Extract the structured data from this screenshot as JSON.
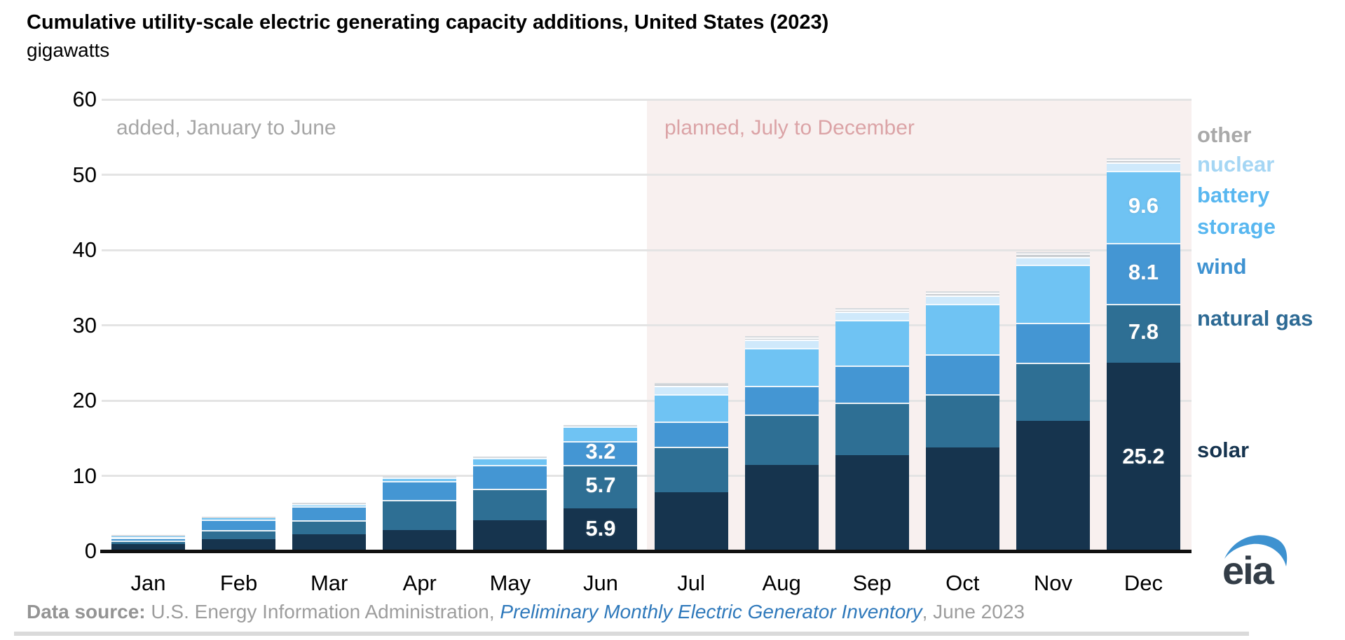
{
  "title": "Cumulative utility-scale electric generating capacity additions, United States (2023)",
  "subtitle": "gigawatts",
  "annotations": {
    "added": "added, January to June",
    "planned": "planned, July to December"
  },
  "legend": [
    {
      "label": "other",
      "color": "#a9a9a9"
    },
    {
      "label": "nuclear",
      "color": "#a5d6f4"
    },
    {
      "label": "battery storage",
      "color": "#58b7f0"
    },
    {
      "label": "wind",
      "color": "#3e92d1"
    },
    {
      "label": "natural gas",
      "color": "#2d6a94"
    },
    {
      "label": "solar",
      "color": "#16344f"
    }
  ],
  "chart_data": {
    "type": "bar",
    "stacked": true,
    "title": "Cumulative utility-scale electric generating capacity additions, United States (2023)",
    "ylabel": "gigawatts",
    "ylim": [
      0,
      60
    ],
    "yticks": [
      0,
      10,
      20,
      30,
      40,
      50,
      60
    ],
    "grid": true,
    "legend_position": "right",
    "categories": [
      "Jan",
      "Feb",
      "Mar",
      "Apr",
      "May",
      "Jun",
      "Jul",
      "Aug",
      "Sep",
      "Oct",
      "Nov",
      "Dec"
    ],
    "series": [
      {
        "name": "solar",
        "color": "#16344e",
        "values": [
          1.1,
          1.8,
          2.4,
          3.0,
          4.3,
          5.9,
          8.0,
          11.6,
          12.9,
          14.0,
          17.5,
          25.2
        ]
      },
      {
        "name": "natural gas",
        "color": "#2e6f94",
        "values": [
          0.5,
          1.2,
          1.9,
          4.0,
          4.2,
          5.7,
          6.0,
          6.7,
          7.0,
          7.0,
          7.7,
          7.8
        ]
      },
      {
        "name": "wind",
        "color": "#4496d3",
        "values": [
          0.4,
          1.4,
          1.8,
          2.5,
          3.1,
          3.2,
          3.4,
          3.8,
          4.9,
          5.3,
          5.3,
          8.1
        ]
      },
      {
        "name": "battery storage",
        "color": "#6fc3f3",
        "values": [
          0.1,
          0.2,
          0.3,
          0.5,
          1.0,
          1.9,
          3.6,
          5.1,
          6.1,
          6.7,
          7.7,
          9.6
        ]
      },
      {
        "name": "nuclear",
        "color": "#cfe9fb",
        "values": [
          0,
          0,
          0,
          0,
          0,
          0,
          1.1,
          1.1,
          1.1,
          1.1,
          1.1,
          1.1
        ]
      },
      {
        "name": "other",
        "color": "#c9cdd1",
        "values": [
          0,
          0,
          0,
          0,
          0,
          0,
          0.2,
          0.3,
          0.3,
          0.4,
          0.4,
          0.4
        ]
      }
    ],
    "bar_labels": [
      {
        "month": "Jun",
        "series": "solar",
        "text": "5.9"
      },
      {
        "month": "Jun",
        "series": "natural gas",
        "text": "5.7"
      },
      {
        "month": "Jun",
        "series": "wind",
        "text": "3.2"
      },
      {
        "month": "Dec",
        "series": "solar",
        "text": "25.2"
      },
      {
        "month": "Dec",
        "series": "natural gas",
        "text": "7.8"
      },
      {
        "month": "Dec",
        "series": "wind",
        "text": "8.1"
      },
      {
        "month": "Dec",
        "series": "battery storage",
        "text": "9.6"
      }
    ],
    "regions": [
      {
        "name": "added",
        "label": "added, January to June",
        "months": [
          "Jan",
          "Jun"
        ]
      },
      {
        "name": "planned",
        "label": "planned, July to December",
        "months": [
          "Jul",
          "Dec"
        ],
        "fill": "#f8f0ef"
      }
    ]
  },
  "footer": {
    "prefix_bold": "Data source: ",
    "org": "U.S. Energy Information Administration, ",
    "inventory_italic": "Preliminary Monthly Electric Generator Inventory",
    "suffix": ", June 2023"
  },
  "logo": {
    "text": "eia"
  }
}
